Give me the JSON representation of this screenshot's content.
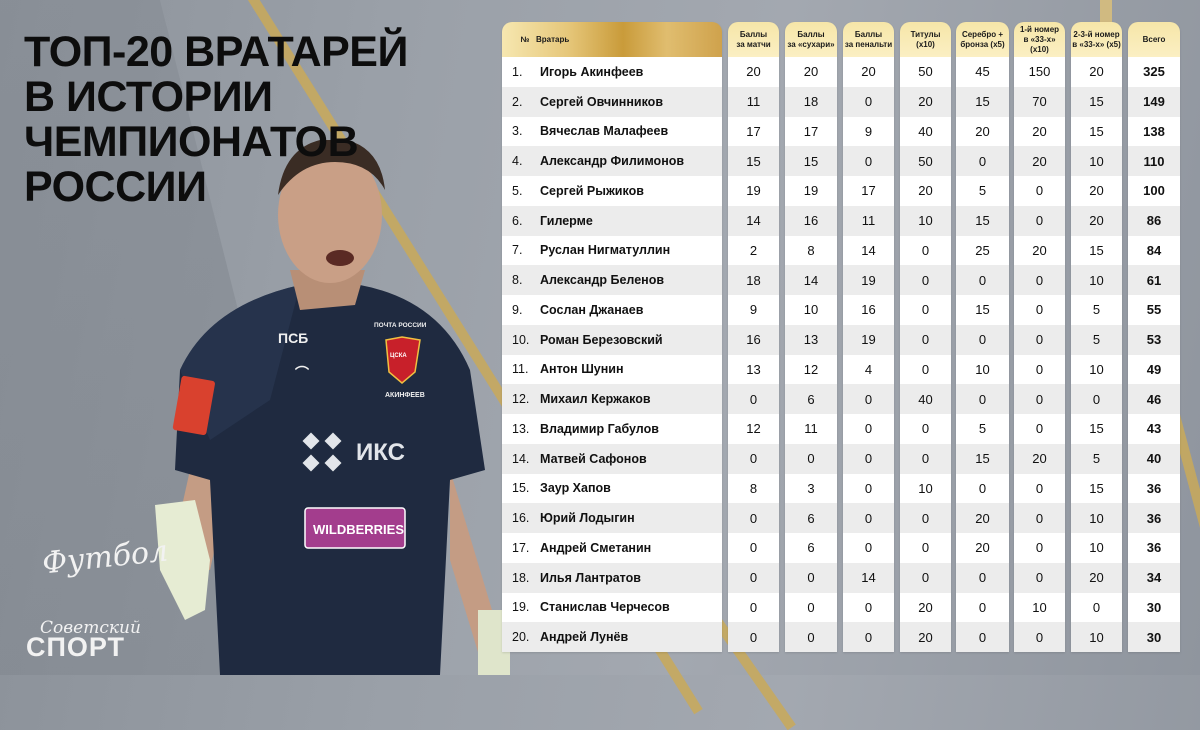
{
  "title": {
    "lines": [
      "ТОП-20 ВРАТАРЕЙ",
      "В ИСТОРИИ",
      "ЧЕМПИОНАТОВ",
      "РОССИИ"
    ]
  },
  "branding": {
    "football_logo": "Футбол",
    "sovetsky": "Советский",
    "sport": "СПОРТ"
  },
  "player_image": {
    "jersey_texts": [
      "ПСБ",
      "ПОЧТА РОССИИ",
      "ЦСКА",
      "АКИНФЕЕВ",
      "ИКС",
      "WILDBERRIES"
    ]
  },
  "colors": {
    "header_gold": "#c99b3a",
    "header_light": "#f6e6a8",
    "row_light": "#ffffff",
    "row_alt": "#ececec",
    "background": "#9aa0a8",
    "stripe": "#c9a959"
  },
  "table": {
    "headers": {
      "num": "№",
      "name": "Вратарь",
      "match_points": "Баллы\nза матчи",
      "cleansheet_points": "Баллы\nза «сухари»",
      "penalty_points": "Баллы\nза пенальти",
      "titles": "Титулы\n(x10)",
      "silver_bronze": "Серебро +\nбронза (x5)",
      "first_33": "1-й номер\nв «33-х»\n(x10)",
      "second_third_33": "2-3-й номер\nв «33-х» (x5)",
      "total": "Всего"
    },
    "rows": [
      {
        "num": "1.",
        "name": "Игорь Акинфеев",
        "c1": "20",
        "c2": "20",
        "c3": "20",
        "c4": "50",
        "c5": "45",
        "c6": "150",
        "c7": "20",
        "total": "325"
      },
      {
        "num": "2.",
        "name": "Сергей Овчинников",
        "c1": "11",
        "c2": "18",
        "c3": "0",
        "c4": "20",
        "c5": "15",
        "c6": "70",
        "c7": "15",
        "total": "149"
      },
      {
        "num": "3.",
        "name": "Вячеслав Малафеев",
        "c1": "17",
        "c2": "17",
        "c3": "9",
        "c4": "40",
        "c5": "20",
        "c6": "20",
        "c7": "15",
        "total": "138"
      },
      {
        "num": "4.",
        "name": "Александр Филимонов",
        "c1": "15",
        "c2": "15",
        "c3": "0",
        "c4": "50",
        "c5": "0",
        "c6": "20",
        "c7": "10",
        "total": "110"
      },
      {
        "num": "5.",
        "name": "Сергей Рыжиков",
        "c1": "19",
        "c2": "19",
        "c3": "17",
        "c4": "20",
        "c5": "5",
        "c6": "0",
        "c7": "20",
        "total": "100"
      },
      {
        "num": "6.",
        "name": "Гилерме",
        "c1": "14",
        "c2": "16",
        "c3": "11",
        "c4": "10",
        "c5": "15",
        "c6": "0",
        "c7": "20",
        "total": "86"
      },
      {
        "num": "7.",
        "name": "Руслан Нигматуллин",
        "c1": "2",
        "c2": "8",
        "c3": "14",
        "c4": "0",
        "c5": "25",
        "c6": "20",
        "c7": "15",
        "total": "84"
      },
      {
        "num": "8.",
        "name": "Александр Беленов",
        "c1": "18",
        "c2": "14",
        "c3": "19",
        "c4": "0",
        "c5": "0",
        "c6": "0",
        "c7": "10",
        "total": "61"
      },
      {
        "num": "9.",
        "name": "Сослан Джанаев",
        "c1": "9",
        "c2": "10",
        "c3": "16",
        "c4": "0",
        "c5": "15",
        "c6": "0",
        "c7": "5",
        "total": "55"
      },
      {
        "num": "10.",
        "name": "Роман Березовский",
        "c1": "16",
        "c2": "13",
        "c3": "19",
        "c4": "0",
        "c5": "0",
        "c6": "0",
        "c7": "5",
        "total": "53"
      },
      {
        "num": "11.",
        "name": "Антон Шунин",
        "c1": "13",
        "c2": "12",
        "c3": "4",
        "c4": "0",
        "c5": "10",
        "c6": "0",
        "c7": "10",
        "total": "49"
      },
      {
        "num": "12.",
        "name": "Михаил Кержаков",
        "c1": "0",
        "c2": "6",
        "c3": "0",
        "c4": "40",
        "c5": "0",
        "c6": "0",
        "c7": "0",
        "total": "46"
      },
      {
        "num": "13.",
        "name": "Владимир Габулов",
        "c1": "12",
        "c2": "11",
        "c3": "0",
        "c4": "0",
        "c5": "5",
        "c6": "0",
        "c7": "15",
        "total": "43"
      },
      {
        "num": "14.",
        "name": "Матвей Сафонов",
        "c1": "0",
        "c2": "0",
        "c3": "0",
        "c4": "0",
        "c5": "15",
        "c6": "20",
        "c7": "5",
        "total": "40"
      },
      {
        "num": "15.",
        "name": "Заур Хапов",
        "c1": "8",
        "c2": "3",
        "c3": "0",
        "c4": "10",
        "c5": "0",
        "c6": "0",
        "c7": "15",
        "total": "36"
      },
      {
        "num": "16.",
        "name": "Юрий Лодыгин",
        "c1": "0",
        "c2": "6",
        "c3": "0",
        "c4": "0",
        "c5": "20",
        "c6": "0",
        "c7": "10",
        "total": "36"
      },
      {
        "num": "17.",
        "name": "Андрей Сметанин",
        "c1": "0",
        "c2": "6",
        "c3": "0",
        "c4": "0",
        "c5": "20",
        "c6": "0",
        "c7": "10",
        "total": "36"
      },
      {
        "num": "18.",
        "name": "Илья Лантратов",
        "c1": "0",
        "c2": "0",
        "c3": "14",
        "c4": "0",
        "c5": "0",
        "c6": "0",
        "c7": "20",
        "total": "34"
      },
      {
        "num": "19.",
        "name": "Станислав Черчесов",
        "c1": "0",
        "c2": "0",
        "c3": "0",
        "c4": "20",
        "c5": "0",
        "c6": "10",
        "c7": "0",
        "total": "30"
      },
      {
        "num": "20.",
        "name": "Андрей Лунёв",
        "c1": "0",
        "c2": "0",
        "c3": "0",
        "c4": "20",
        "c5": "0",
        "c6": "0",
        "c7": "10",
        "total": "30"
      }
    ]
  }
}
